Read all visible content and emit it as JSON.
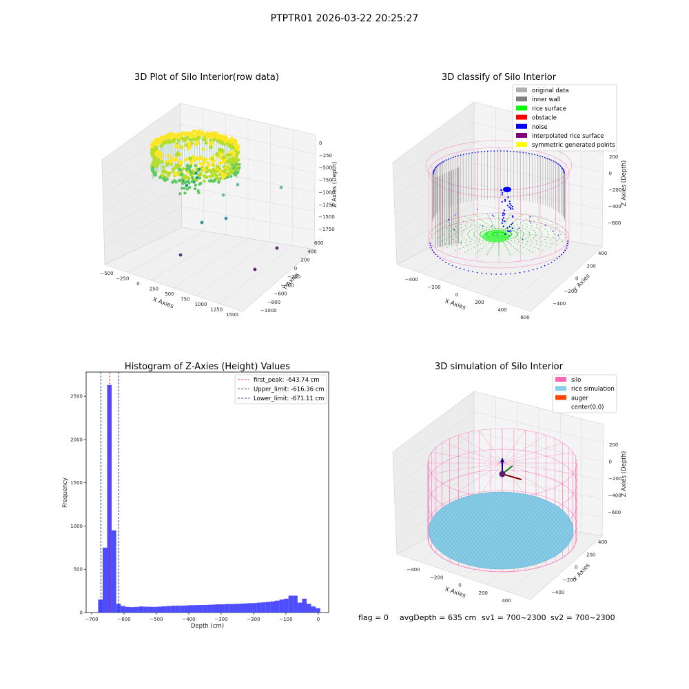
{
  "figure_title": "PTPTR01 2026-03-22 20:25:27",
  "footer": {
    "flag": "flag = 0",
    "avg_depth": "avgDepth = 635 cm",
    "sv1": "sv1 = 700~2300",
    "sv2": "sv2 = 700~2300"
  },
  "colors": {
    "original": "#b0b0b0",
    "inner_wall": "#808080",
    "rice_surface": "#00ff00",
    "obstacle": "#ff0000",
    "noise": "#0000ff",
    "interpolated": "#800080",
    "symmetric": "#ffff00",
    "silo": "#ff69b4",
    "rice_simulation": "#87ceeb",
    "auger": "#ff4500",
    "histogram_bar": "#4444ff",
    "first_peak_line": "#ff0000",
    "limit_line": "#00008b"
  },
  "chart_data": [
    {
      "type": "scatter",
      "title": "3D Plot of Silo Interior(row data)",
      "xlabel": "X Axies",
      "ylabel": "Y Axies",
      "zlabel": "Z Axies (Depth)",
      "x_ticks": [
        "−500",
        "−250",
        "0",
        "250",
        "500",
        "750",
        "1000",
        "1250",
        "1500"
      ],
      "y_ticks": [
        "600",
        "400",
        "200",
        "0",
        "−200",
        "−400",
        "−600",
        "−800",
        "−1000"
      ],
      "z_ticks": [
        "0",
        "−250",
        "−500",
        "−750",
        "−1000",
        "−1250",
        "−1500",
        "−1750"
      ],
      "colormap": "viridis",
      "outlier_points": [
        {
          "x": 980,
          "y": -250,
          "z": -1250
        },
        {
          "x": 720,
          "y": -300,
          "z": -1550
        },
        {
          "x": 500,
          "y": -100,
          "z": -1650
        },
        {
          "x": 250,
          "y": -200,
          "z": -1000
        },
        {
          "x": 1300,
          "y": -400,
          "z": -1900
        },
        {
          "x": 1400,
          "y": -600,
          "z": -2050
        },
        {
          "x": 600,
          "y": 100,
          "z": -1150
        }
      ]
    },
    {
      "type": "scatter",
      "title": "3D classify of Silo Interior",
      "xlabel": "X Axies",
      "ylabel": "Y Axies",
      "zlabel": "Z Axies (Depth)",
      "x_ticks": [
        "−400",
        "−200",
        "0",
        "200",
        "400",
        "600"
      ],
      "y_ticks": [
        "400",
        "200",
        "0",
        "−200",
        "−400"
      ],
      "z_ticks": [
        "200",
        "0",
        "−200",
        "−400",
        "−600"
      ],
      "legend": [
        {
          "label": "original data",
          "color": "#b0b0b0"
        },
        {
          "label": "inner wall",
          "color": "#808080"
        },
        {
          "label": "rice surface",
          "color": "#00ff00"
        },
        {
          "label": "obstacle",
          "color": "#ff0000"
        },
        {
          "label": "noise",
          "color": "#0000ff"
        },
        {
          "label": "interpolated rice surface",
          "color": "#800080"
        },
        {
          "label": "symmetric generated points",
          "color": "#ffff00"
        }
      ]
    },
    {
      "type": "bar",
      "title": "Histogram of Z-Axies (Height) Values",
      "xlabel": "Depth (cm)",
      "ylabel": "Frequency",
      "xlim": [
        -717,
        32
      ],
      "ylim": [
        0,
        2780
      ],
      "x_ticks": [
        -700,
        -600,
        -500,
        -400,
        -300,
        -200,
        -100,
        0
      ],
      "y_ticks": [
        0,
        500,
        1000,
        1500,
        2000,
        2500
      ],
      "bin_width": 14,
      "bins": [
        {
          "x": -673,
          "value": 150
        },
        {
          "x": -659,
          "value": 750
        },
        {
          "x": -645,
          "value": 2630
        },
        {
          "x": -631,
          "value": 950
        },
        {
          "x": -617,
          "value": 100
        },
        {
          "x": -603,
          "value": 75
        },
        {
          "x": -589,
          "value": 65
        },
        {
          "x": -575,
          "value": 62
        },
        {
          "x": -561,
          "value": 65
        },
        {
          "x": -547,
          "value": 70
        },
        {
          "x": -533,
          "value": 68
        },
        {
          "x": -519,
          "value": 66
        },
        {
          "x": -505,
          "value": 65
        },
        {
          "x": -491,
          "value": 68
        },
        {
          "x": -477,
          "value": 72
        },
        {
          "x": -463,
          "value": 75
        },
        {
          "x": -449,
          "value": 78
        },
        {
          "x": -435,
          "value": 80
        },
        {
          "x": -421,
          "value": 80
        },
        {
          "x": -407,
          "value": 82
        },
        {
          "x": -393,
          "value": 85
        },
        {
          "x": -379,
          "value": 85
        },
        {
          "x": -365,
          "value": 88
        },
        {
          "x": -351,
          "value": 88
        },
        {
          "x": -337,
          "value": 90
        },
        {
          "x": -323,
          "value": 92
        },
        {
          "x": -309,
          "value": 95
        },
        {
          "x": -295,
          "value": 95
        },
        {
          "x": -281,
          "value": 98
        },
        {
          "x": -267,
          "value": 98
        },
        {
          "x": -253,
          "value": 100
        },
        {
          "x": -239,
          "value": 102
        },
        {
          "x": -225,
          "value": 105
        },
        {
          "x": -211,
          "value": 108
        },
        {
          "x": -197,
          "value": 110
        },
        {
          "x": -183,
          "value": 115
        },
        {
          "x": -169,
          "value": 118
        },
        {
          "x": -155,
          "value": 122
        },
        {
          "x": -141,
          "value": 128
        },
        {
          "x": -127,
          "value": 138
        },
        {
          "x": -113,
          "value": 150
        },
        {
          "x": -99,
          "value": 160
        },
        {
          "x": -85,
          "value": 195
        },
        {
          "x": -71,
          "value": 195
        },
        {
          "x": -57,
          "value": 115
        },
        {
          "x": -43,
          "value": 160
        },
        {
          "x": -29,
          "value": 100
        },
        {
          "x": -15,
          "value": 70
        },
        {
          "x": -1,
          "value": 50
        }
      ],
      "vlines": [
        {
          "label": "first_peak: -643.74 cm",
          "x": -643.74,
          "color": "#ff0000"
        },
        {
          "label": "Upper_limit: -616.36 cm",
          "x": -616.36,
          "color": "#00008b"
        },
        {
          "label": "Lower_limit: -671.11 cm",
          "x": -671.11,
          "color": "#00008b"
        }
      ],
      "legend_position": "top-right"
    },
    {
      "type": "scatter",
      "title": "3D simulation of Silo Interior",
      "xlabel": "X Axies",
      "ylabel": "Y Axies",
      "zlabel": "Z Axies (Depth)",
      "x_ticks": [
        "−400",
        "−200",
        "0",
        "200",
        "400"
      ],
      "y_ticks": [
        "400",
        "200",
        "0",
        "−200",
        "−400"
      ],
      "z_ticks": [
        "200",
        "0",
        "−200",
        "−400",
        "−600"
      ],
      "legend": [
        {
          "label": "silo",
          "color": "#ff69b4"
        },
        {
          "label": "rice simulation",
          "color": "#87ceeb"
        },
        {
          "label": "auger",
          "color": "#ff4500"
        },
        {
          "label": "center(0,0)",
          "color": ""
        }
      ]
    }
  ]
}
